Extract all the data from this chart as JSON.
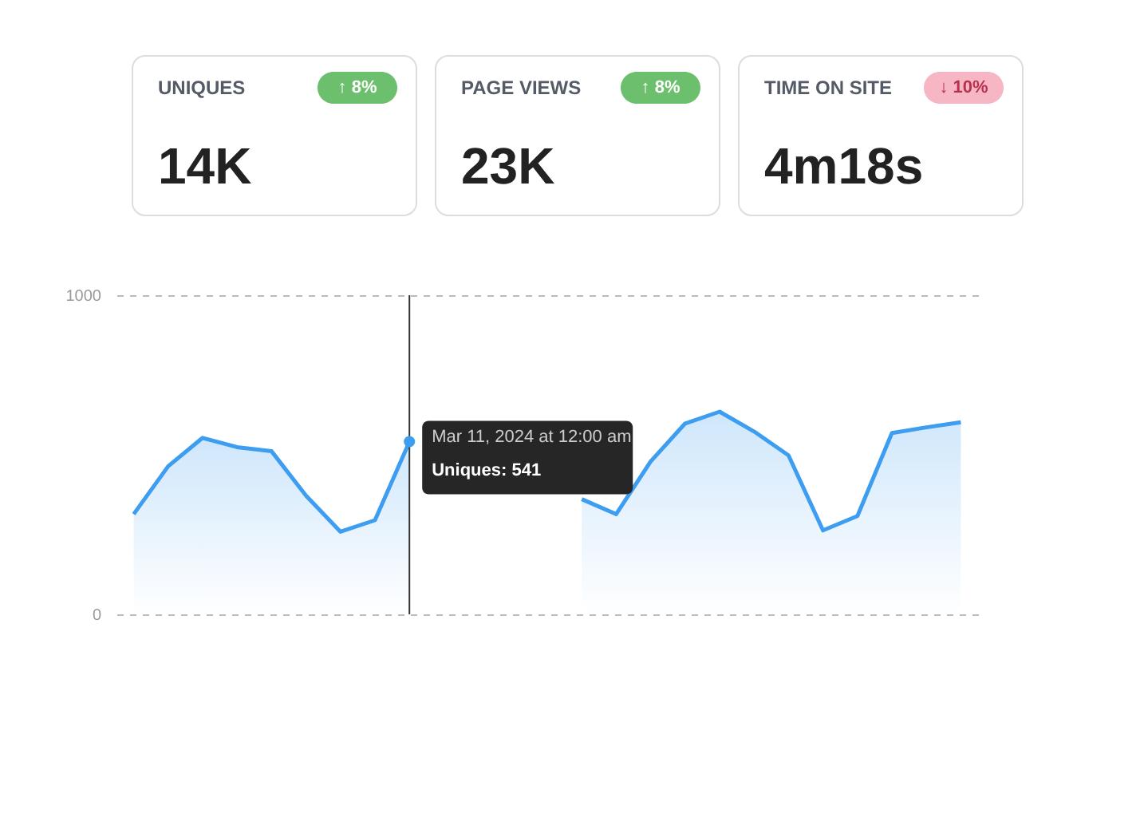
{
  "chart_data": [
    {
      "type": "other",
      "annotations": [
        "UNIQUES",
        "↑ 8%",
        "14K",
        "PAGE VIEWS",
        "↑ 8%",
        "23K",
        "TIME ON SITE",
        "↓ 10%",
        "4m18s"
      ],
      "colors": [
        "#6cbf6c",
        "#6cbf6c",
        "#f7b6c4"
      ]
    },
    {
      "type": "area",
      "categories": [
        null,
        null,
        null,
        null,
        null,
        null,
        null,
        null,
        null,
        null,
        null,
        null,
        null,
        null,
        null,
        null,
        null,
        null,
        null,
        null,
        null,
        null,
        null,
        null,
        null
      ],
      "series": [
        {
          "color": "#3d9df0",
          "values": [
            314,
            464,
            553,
            524,
            511,
            372,
            259,
            295,
            541,
            null,
            null,
            null,
            null,
            null,
            null,
            null,
            null,
            null,
            null,
            null,
            null,
            null,
            null,
            null,
            null
          ]
        },
        {
          "color": "#3d9df0",
          "values": [
            null,
            null,
            null,
            null,
            null,
            null,
            null,
            null,
            null,
            null,
            null,
            null,
            null,
            361,
            314,
            479,
            598,
            635,
            573,
            498,
            263,
            308,
            568,
            586,
            602
          ]
        }
      ],
      "ylim": [
        0,
        1000
      ],
      "yticks": [
        0,
        {
          "value": 1000,
          "label": "1000"
        }
      ],
      "grid": "y",
      "tick_labels": "y",
      "annotations": [
        "Mar 11, 2024 at 12:00 am",
        "Uniques: 541"
      ]
    }
  ]
}
